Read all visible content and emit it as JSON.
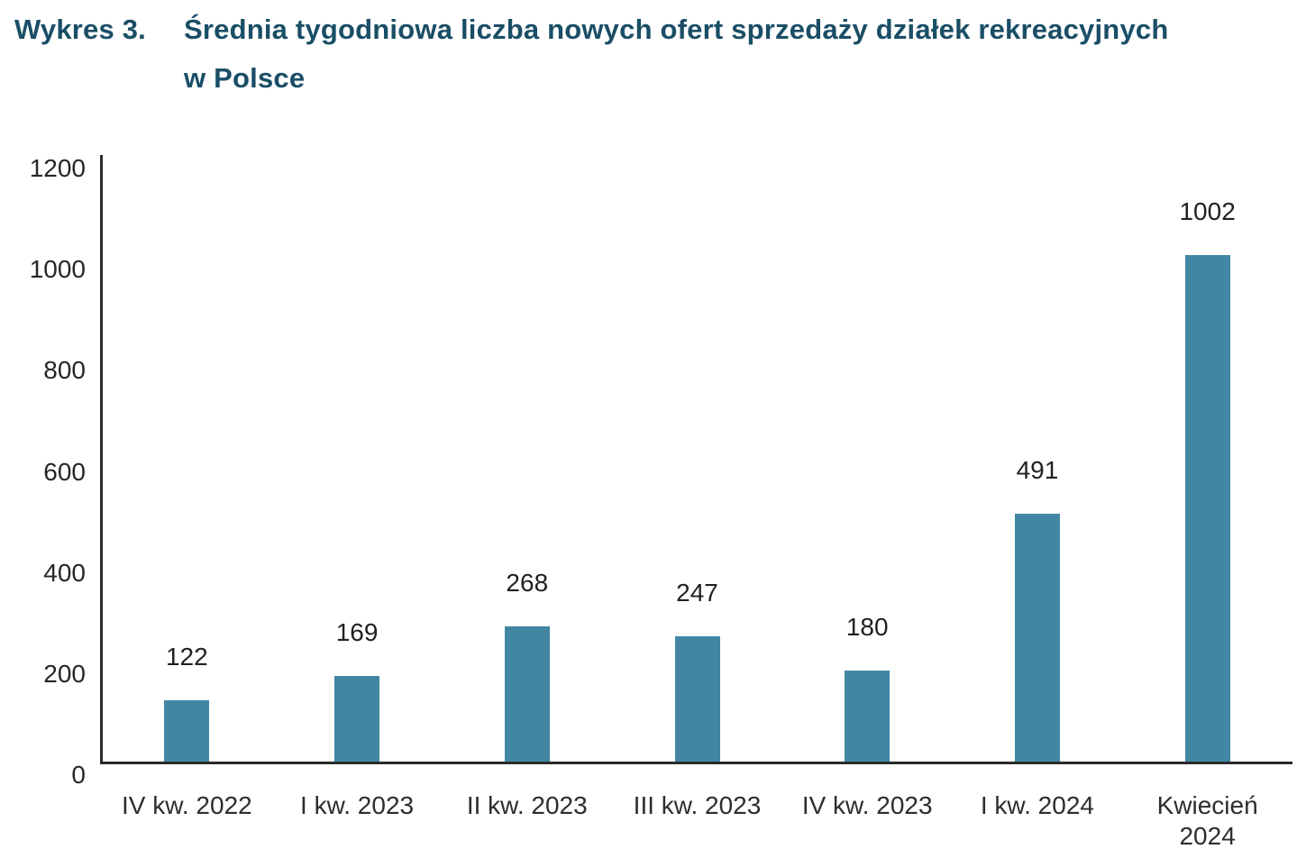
{
  "title": {
    "prefix": "Wykres 3.",
    "line1": "Średnia tygodniowa liczba nowych ofert sprzedaży działek rekreacyjnych",
    "line2": "w Polsce"
  },
  "chart_data": {
    "type": "bar",
    "title": "Wykres 3. Średnia tygodniowa liczba nowych ofert sprzedaży działek rekreacyjnych w Polsce",
    "categories": [
      "IV kw. 2022",
      "I kw. 2023",
      "II kw. 2023",
      "III kw. 2023",
      "IV kw. 2023",
      "I kw. 2024",
      "Kwiecień\n2024"
    ],
    "values": [
      122,
      169,
      268,
      247,
      180,
      491,
      1002
    ],
    "xlabel": "",
    "ylabel": "",
    "ylim": [
      0,
      1200
    ],
    "yticks": [
      0,
      200,
      400,
      600,
      800,
      1000,
      1200
    ],
    "grid": false,
    "legend_position": "none",
    "bar_color": "#4286a4",
    "title_color": "#1a4e66",
    "axis_color": "#2b2b2b",
    "tick_label_color": "#262626",
    "data_label_color": "#212121"
  }
}
